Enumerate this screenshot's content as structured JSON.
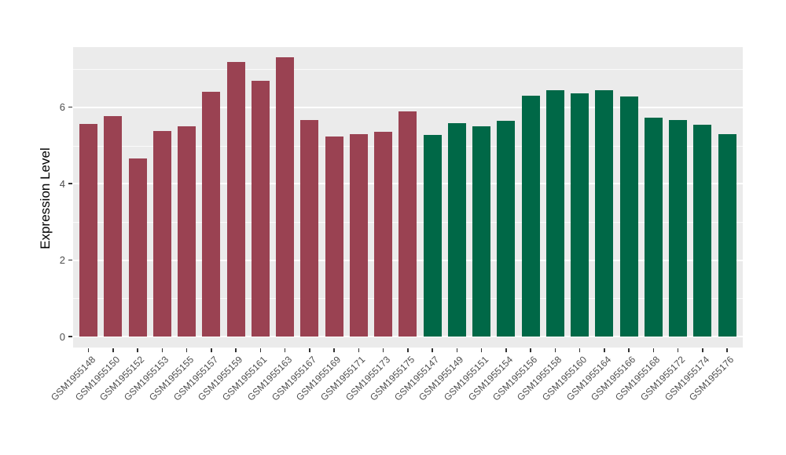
{
  "chart_data": {
    "type": "bar",
    "title": "",
    "ylabel": "Expression Level",
    "xlabel": "",
    "ylim": [
      0,
      7.58
    ],
    "yticks": [
      0,
      2,
      4,
      6
    ],
    "yticks_minor": [
      1,
      3,
      5,
      7
    ],
    "grid": "major and minor horizontal white gridlines on gray panel",
    "legend_position": "none",
    "panel_bg": "#EBEBEB",
    "grid_color": "#FFFFFF",
    "axis_text_color": "#4D4D4D",
    "tick_mark_color": "#333333",
    "categories": [
      "GSM1955148",
      "GSM1955150",
      "GSM1955152",
      "GSM1955153",
      "GSM1955155",
      "GSM1955157",
      "GSM1955159",
      "GSM1955161",
      "GSM1955163",
      "GSM1955167",
      "GSM1955169",
      "GSM1955171",
      "GSM1955173",
      "GSM1955175",
      "GSM1955147",
      "GSM1955149",
      "GSM1955151",
      "GSM1955154",
      "GSM1955156",
      "GSM1955158",
      "GSM1955160",
      "GSM1955164",
      "GSM1955166",
      "GSM1955168",
      "GSM1955172",
      "GSM1955174",
      "GSM1955176"
    ],
    "values": [
      5.56,
      5.78,
      4.67,
      5.38,
      5.5,
      6.4,
      7.19,
      6.7,
      7.31,
      5.67,
      5.24,
      5.29,
      5.35,
      5.89,
      5.27,
      5.58,
      5.51,
      5.64,
      6.3,
      6.44,
      6.37,
      6.45,
      6.29,
      5.72,
      5.66,
      5.54,
      5.29
    ],
    "groups": [
      "maroon",
      "maroon",
      "maroon",
      "maroon",
      "maroon",
      "maroon",
      "maroon",
      "maroon",
      "maroon",
      "maroon",
      "maroon",
      "maroon",
      "maroon",
      "maroon",
      "green",
      "green",
      "green",
      "green",
      "green",
      "green",
      "green",
      "green",
      "green",
      "green",
      "green",
      "green",
      "green"
    ],
    "group_colors": {
      "maroon": "#9A4252",
      "green": "#006847"
    }
  }
}
